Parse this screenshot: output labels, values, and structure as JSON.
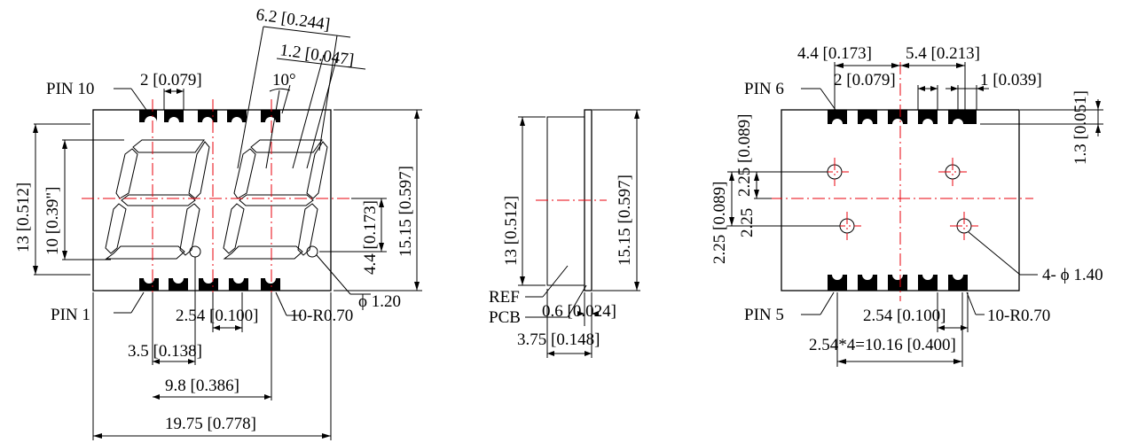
{
  "front": {
    "pin10": "PIN 10",
    "pin1": "PIN 1",
    "top_pitch": "2 [0.079]",
    "digit_width": "6.2 [0.244]",
    "seg_width": "1.2 [0.047]",
    "angle": "10°",
    "height": "13 [0.512]",
    "digit_height": "10 [0.39\"]",
    "dp_offset": "4.4 [0.173]",
    "total_height": "15.15 [0.597]",
    "dp_dia": "ϕ 1.20",
    "pitch": "2.54 [0.100]",
    "radius": "10-R0.70",
    "pin_offset": "3.5 [0.138]",
    "digit_pitch": "9.8 [0.386]",
    "width": "19.75 [0.778]"
  },
  "side": {
    "height": "13 [0.512]",
    "total_height": "15.15 [0.597]",
    "ref": "REF",
    "pcb": "PCB",
    "pcb_thk": "0.6 [0.024]",
    "depth": "3.75 [0.148]"
  },
  "bottom": {
    "pin6": "PIN 6",
    "pin5": "PIN 5",
    "dim_a": "4.4 [0.173]",
    "dim_b": "5.4 [0.213]",
    "dim_c": "2 [0.079]",
    "dim_d": "1 [0.039]",
    "pad_h": "1.3 [0.051]",
    "hole_a": "2.25 [0.089]",
    "hole_b": "2.25 [0.089]",
    "holes": "4- ϕ 1.40",
    "pitch": "2.54 [0.100]",
    "radius": "10-R0.70",
    "span": "2.54*4=10.16 [0.400]"
  }
}
